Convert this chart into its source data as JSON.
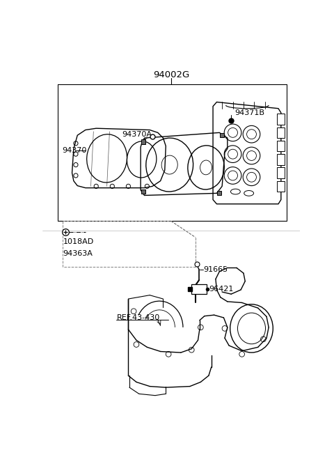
{
  "bg_color": "#ffffff",
  "line_color": "#000000",
  "label_94002G": "94002G",
  "label_94371B": "94371B",
  "label_94370A": "94370A",
  "label_94370": "94370",
  "label_94363A": "94363A",
  "label_1018AD": "1018AD",
  "label_91665": "91665",
  "label_96421": "96421",
  "label_ref": "REF.43-430"
}
